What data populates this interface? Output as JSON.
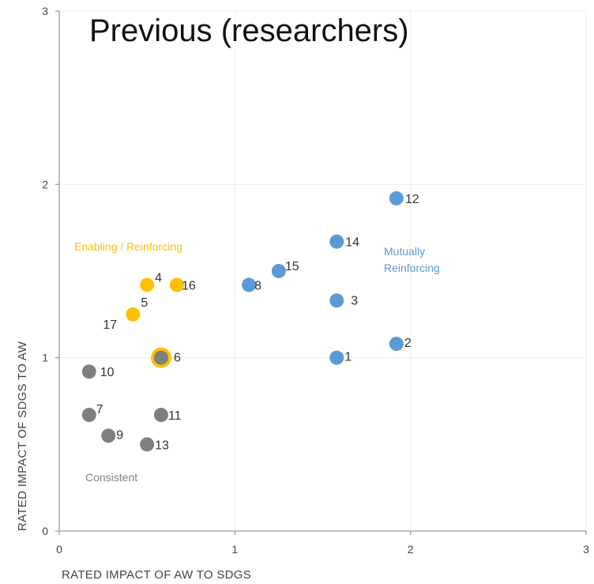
{
  "chart_data": {
    "type": "scatter",
    "title": "Previous (researchers)",
    "xlabel": "RATED IMPACT OF AW TO SDGS",
    "ylabel": "RATED IMPACT OF SDGS TO AW",
    "xlim": [
      0,
      3
    ],
    "ylim": [
      0,
      3
    ],
    "xticks": [
      "0",
      "1",
      "2",
      "3"
    ],
    "yticks": [
      "0",
      "1",
      "2",
      "3"
    ],
    "grid": true,
    "colors": {
      "blue": "#5b9bd5",
      "yellow": "#ffc000",
      "gray": "#7f7f7f"
    },
    "region_labels": [
      {
        "text": "Enabling / Reinforcing",
        "color": "#ffc000"
      },
      {
        "text": "Mutually",
        "color": "#5b9bd5"
      },
      {
        "text": "Reinforcing",
        "color": "#5b9bd5"
      },
      {
        "text": "Consistent",
        "color": "#7f7f7f"
      }
    ],
    "points": [
      {
        "label": "1",
        "x": 1.58,
        "y": 1.0,
        "color": "#5b9bd5"
      },
      {
        "label": "2",
        "x": 1.92,
        "y": 1.08,
        "color": "#5b9bd5"
      },
      {
        "label": "3",
        "x": 1.58,
        "y": 1.33,
        "color": "#5b9bd5"
      },
      {
        "label": "4",
        "x": 0.5,
        "y": 1.42,
        "color": "#ffc000"
      },
      {
        "label": "5",
        "x": 0.42,
        "y": 1.25,
        "color": "#ffc000"
      },
      {
        "label": "6",
        "x": 0.58,
        "y": 1.0,
        "color": "#7f7f7f"
      },
      {
        "label": "7",
        "x": 0.17,
        "y": 0.67,
        "color": "#7f7f7f"
      },
      {
        "label": "8",
        "x": 1.08,
        "y": 1.42,
        "color": "#5b9bd5"
      },
      {
        "label": "9",
        "x": 0.28,
        "y": 0.55,
        "color": "#7f7f7f"
      },
      {
        "label": "10",
        "x": 0.17,
        "y": 0.92,
        "color": "#7f7f7f"
      },
      {
        "label": "11",
        "x": 0.58,
        "y": 0.67,
        "color": "#7f7f7f"
      },
      {
        "label": "12",
        "x": 1.92,
        "y": 1.92,
        "color": "#5b9bd5"
      },
      {
        "label": "13",
        "x": 0.5,
        "y": 0.5,
        "color": "#7f7f7f"
      },
      {
        "label": "14",
        "x": 1.58,
        "y": 1.67,
        "color": "#5b9bd5"
      },
      {
        "label": "15",
        "x": 1.25,
        "y": 1.5,
        "color": "#5b9bd5"
      },
      {
        "label": "16",
        "x": 0.67,
        "y": 1.42,
        "color": "#ffc000"
      },
      {
        "label": "17",
        "x": 0.42,
        "y": 1.25,
        "color": "#ffc000"
      }
    ]
  }
}
